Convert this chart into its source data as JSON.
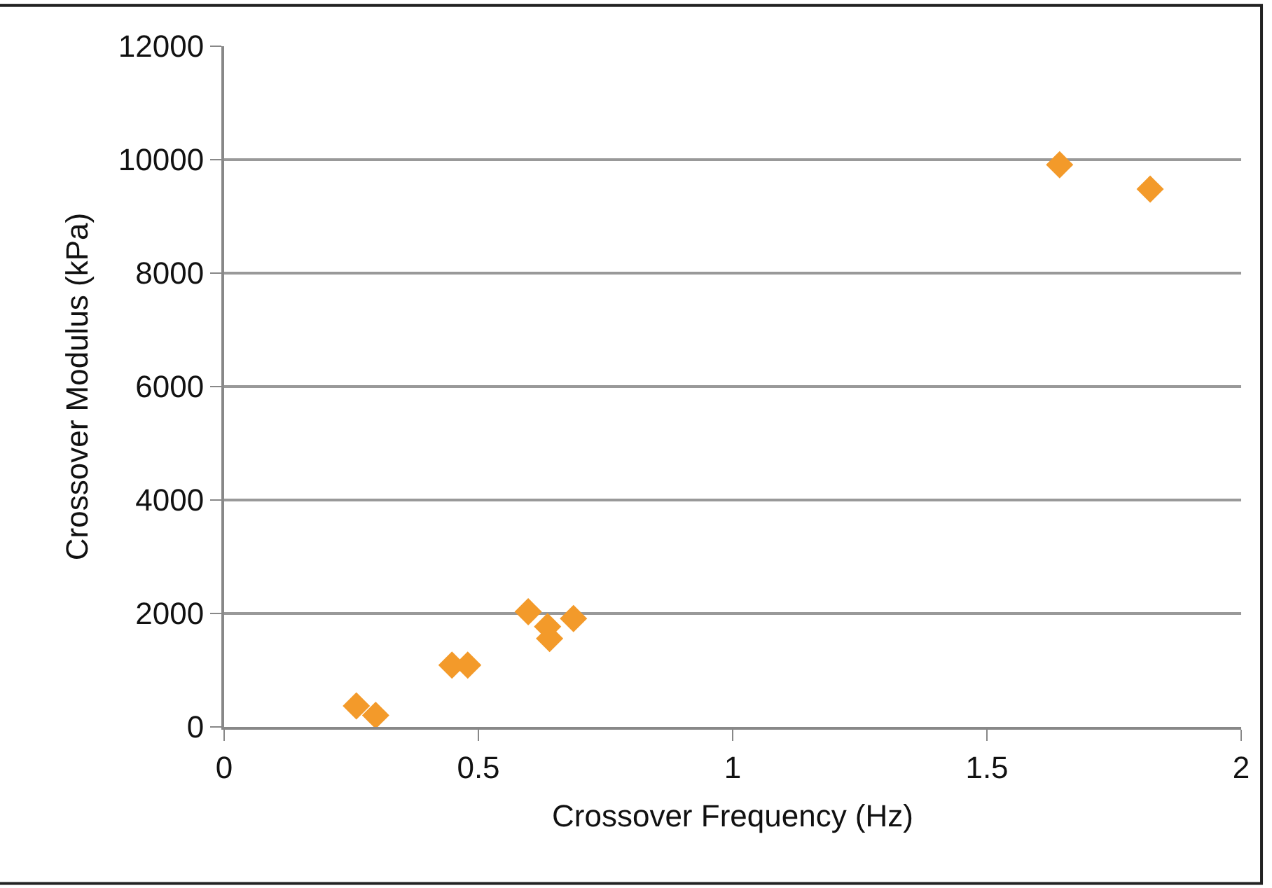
{
  "chart_data": {
    "type": "scatter",
    "xlabel": "Crossover Frequency (Hz)",
    "ylabel": "Crossover Modulus (kPa)",
    "series": [
      {
        "color": "#f39a2a",
        "x": [
          0.26,
          0.298,
          0.448,
          0.479,
          0.598,
          0.636,
          0.64,
          0.687,
          1.643,
          1.821
        ],
        "values": [
          370,
          205,
          1090,
          1090,
          2030,
          1770,
          1560,
          1910,
          9910,
          9480
        ]
      }
    ],
    "xlim": [
      0,
      2
    ],
    "xticks": [
      0,
      0.5,
      1,
      1.5,
      2
    ],
    "ylim": [
      0,
      12000
    ],
    "yticks": [
      0,
      2000,
      4000,
      6000,
      8000,
      10000,
      12000
    ],
    "grid": "y",
    "marker": "diamond",
    "legend": false
  }
}
